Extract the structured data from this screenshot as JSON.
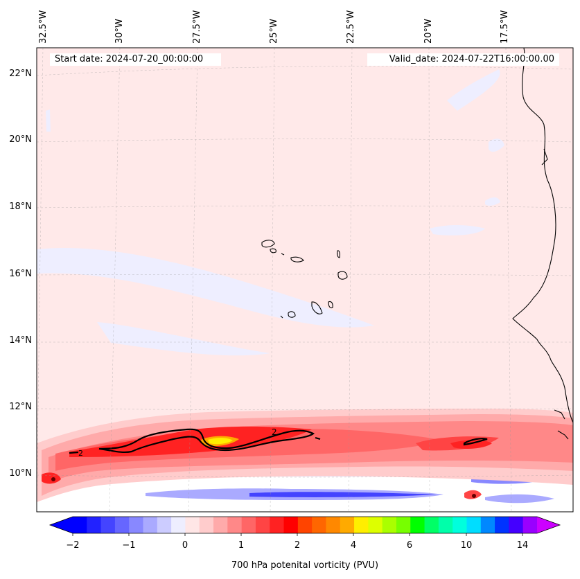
{
  "header": {
    "start_date": "Start date: 2024-07-20_00:00:00",
    "valid_date": "Valid_date: 2024-07-22T16:00:00.00"
  },
  "map": {
    "lat_labels": [
      "22°N",
      "20°N",
      "18°N",
      "16°N",
      "14°N",
      "12°N",
      "10°N"
    ],
    "lon_labels": [
      "32.5°W",
      "30°W",
      "27.5°W",
      "25°W",
      "22.5°W",
      "20°W",
      "17.5°W"
    ],
    "contour_label": "2"
  },
  "colorbar": {
    "title": "700 hPa potenital vorticity (PVU)",
    "tick_labels": [
      "−2",
      "−1",
      "0",
      "1",
      "2",
      "4",
      "6",
      "10",
      "14"
    ],
    "colors": [
      "#0000ff",
      "#2222ff",
      "#4444ff",
      "#6666ff",
      "#8888ff",
      "#aaaaff",
      "#ccccff",
      "#eeeeff",
      "#ffe6e6",
      "#ffcccc",
      "#ffaaaa",
      "#ff8888",
      "#ff6666",
      "#ff4444",
      "#ff2222",
      "#ff0000",
      "#ff4400",
      "#ff6600",
      "#ff8800",
      "#ffaa00",
      "#ffee00",
      "#ddff00",
      "#aaff00",
      "#77ff00",
      "#00ff00",
      "#00ff66",
      "#00ffaa",
      "#00ffdd",
      "#00ddff",
      "#0088ff",
      "#0033ff",
      "#4400ff",
      "#9900ff"
    ],
    "under_color": "#0000ff",
    "over_color": "#cc00ff"
  }
}
